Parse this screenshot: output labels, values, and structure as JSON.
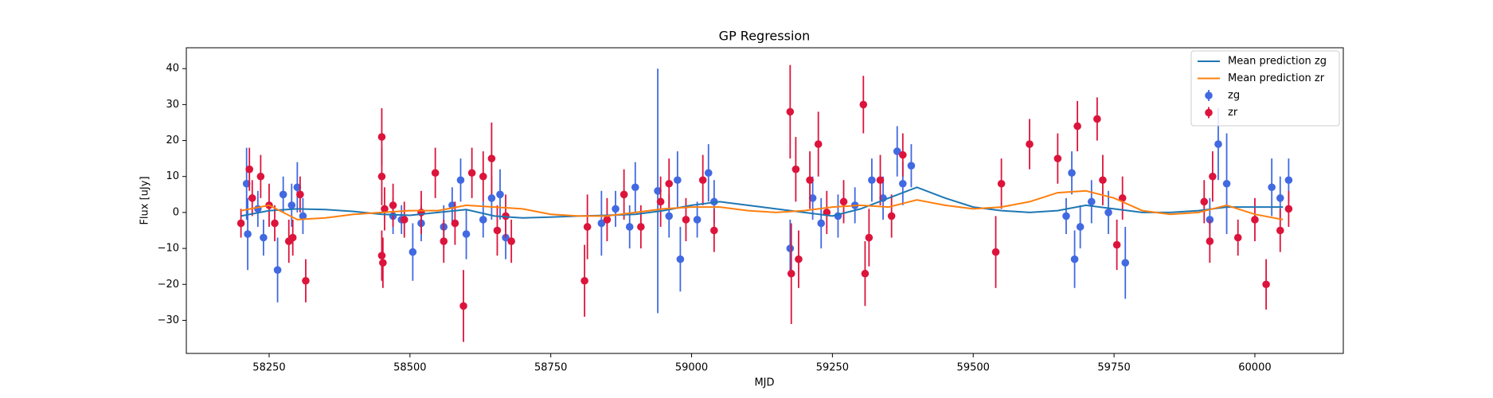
{
  "chart_data": {
    "type": "errorbar_line",
    "title": "GP Regression",
    "xlabel": "MJD",
    "ylabel": "Flux [uJy]",
    "xlim": [
      58103,
      60157
    ],
    "ylim": [
      -39.2,
      45.8
    ],
    "xticks": [
      58250,
      58500,
      58750,
      59000,
      59250,
      59500,
      59750,
      60000
    ],
    "yticks": [
      {
        "value": -30,
        "label": "−30"
      },
      {
        "value": -20,
        "label": "−20"
      },
      {
        "value": -10,
        "label": "−10"
      },
      0,
      10,
      20,
      30,
      40
    ],
    "legend": "upper right",
    "lines": [
      {
        "name": "Mean prediction zg",
        "color": "#1f77b4",
        "x": [
          58200,
          58250,
          58300,
          58350,
          58400,
          58450,
          58500,
          58550,
          58600,
          58650,
          58700,
          58750,
          58800,
          58850,
          58900,
          58950,
          59000,
          59050,
          59100,
          59150,
          59200,
          59250,
          59300,
          59350,
          59400,
          59450,
          59500,
          59550,
          59600,
          59650,
          59700,
          59750,
          59800,
          59850,
          59900,
          59950,
          60000,
          60050
        ],
        "values": [
          -1,
          0.5,
          1,
          0.8,
          0.3,
          -0.5,
          -0.8,
          0,
          0.8,
          -1,
          -1.5,
          -1.3,
          -1,
          -0.8,
          -0.5,
          0.5,
          2,
          3,
          2,
          1,
          0,
          -1,
          1,
          4,
          7,
          4,
          1.5,
          0.5,
          0,
          0.5,
          2,
          1,
          0,
          0,
          0.5,
          1.5,
          1.5,
          1.5
        ]
      },
      {
        "name": "Mean prediction zr",
        "color": "#ff7f0e",
        "x": [
          58200,
          58250,
          58300,
          58350,
          58400,
          58450,
          58500,
          58550,
          58600,
          58650,
          58700,
          58750,
          58800,
          58850,
          58900,
          58950,
          59000,
          59050,
          59100,
          59150,
          59200,
          59250,
          59300,
          59350,
          59400,
          59450,
          59500,
          59550,
          59600,
          59650,
          59700,
          59750,
          59800,
          59850,
          59900,
          59950,
          60000,
          60050
        ],
        "values": [
          0.5,
          2,
          -2,
          -1.5,
          -0.5,
          0,
          0.5,
          0.5,
          2,
          1.5,
          1,
          -0.5,
          -1,
          -1,
          0,
          1,
          1.5,
          1.5,
          0.5,
          0,
          0.5,
          1.5,
          2,
          1.5,
          3.5,
          2,
          1,
          1.5,
          3,
          5.5,
          6,
          4,
          0.5,
          -0.5,
          0,
          2,
          -0.5,
          -2
        ]
      }
    ],
    "series": [
      {
        "name": "zg",
        "color": "#4169e1",
        "x": [
          58210,
          58212,
          58230,
          58240,
          58265,
          58275,
          58290,
          58300,
          58310,
          58470,
          58485,
          58505,
          58520,
          58560,
          58575,
          58590,
          58600,
          58630,
          58645,
          58660,
          58670,
          58840,
          58865,
          58890,
          58900,
          58940,
          58960,
          58975,
          58980,
          59010,
          59030,
          59040,
          59175,
          59215,
          59230,
          59260,
          59290,
          59320,
          59340,
          59365,
          59375,
          59390,
          59665,
          59675,
          59680,
          59690,
          59710,
          59740,
          59770,
          59920,
          59935,
          59950,
          60030,
          60045,
          60060
        ],
        "values": [
          8,
          -6,
          1,
          -7,
          -16,
          5,
          2,
          7,
          -1,
          -1,
          -2,
          -11,
          -3,
          -4,
          2,
          9,
          -6,
          -2,
          4,
          5,
          -7,
          -3,
          1,
          -4,
          7,
          6,
          -1,
          9,
          -13,
          -2,
          11,
          3,
          -10,
          4,
          -3,
          -1,
          2,
          9,
          4,
          17,
          8,
          13,
          -1,
          11,
          -13,
          -4,
          3,
          0,
          -14,
          -2,
          19,
          8,
          7,
          4,
          9
        ],
        "errors": [
          10,
          10,
          5,
          5,
          9,
          5,
          6,
          7,
          5,
          5,
          4,
          8,
          5,
          6,
          5,
          6,
          7,
          5,
          6,
          7,
          6,
          9,
          5,
          6,
          7,
          34,
          6,
          8,
          9,
          5,
          8,
          6,
          8,
          6,
          7,
          6,
          5,
          6,
          6,
          7,
          6,
          6,
          5,
          6,
          8,
          6,
          6,
          6,
          10,
          6,
          10,
          14,
          8,
          6,
          6
        ]
      },
      {
        "name": "zr",
        "color": "#dc143c",
        "x": [
          58200,
          58215,
          58220,
          58235,
          58250,
          58260,
          58285,
          58292,
          58305,
          58315,
          58450,
          58450,
          58450,
          58452,
          58455,
          58470,
          58490,
          58520,
          58545,
          58560,
          58580,
          58595,
          58610,
          58630,
          58645,
          58655,
          58670,
          58680,
          58810,
          58815,
          58850,
          58880,
          58910,
          58945,
          58960,
          58990,
          59020,
          59040,
          59175,
          59177,
          59185,
          59190,
          59210,
          59225,
          59240,
          59270,
          59305,
          59308,
          59315,
          59335,
          59355,
          59375,
          59540,
          59550,
          59600,
          59650,
          59685,
          59720,
          59730,
          59755,
          59765,
          59910,
          59920,
          59925,
          59970,
          60000,
          60020,
          60045,
          60060
        ],
        "values": [
          -3,
          12,
          4,
          10,
          2,
          -3,
          -8,
          -7,
          5,
          -19,
          21,
          10,
          -12,
          -14,
          1,
          2,
          -2,
          0,
          11,
          -8,
          -3,
          -26,
          11,
          10,
          15,
          -5,
          -1,
          -8,
          -19,
          -4,
          -2,
          5,
          -4,
          3,
          8,
          -2,
          9,
          -5,
          28,
          -17,
          12,
          -13,
          9,
          19,
          0,
          3,
          30,
          -17,
          -7,
          9,
          -1,
          16,
          -11,
          8,
          19,
          15,
          24,
          26,
          9,
          -9,
          4,
          3,
          -8,
          10,
          -7,
          -2,
          -20,
          -5,
          1
        ],
        "errors": [
          4,
          6,
          5,
          6,
          6,
          5,
          6,
          5,
          5,
          6,
          8,
          8,
          7,
          7,
          6,
          6,
          5,
          6,
          7,
          6,
          6,
          10,
          7,
          7,
          10,
          7,
          6,
          6,
          10,
          9,
          6,
          7,
          6,
          7,
          7,
          6,
          7,
          6,
          13,
          14,
          9,
          8,
          8,
          9,
          6,
          6,
          8,
          9,
          8,
          7,
          6,
          6,
          10,
          7,
          7,
          7,
          7,
          6,
          7,
          7,
          6,
          6,
          6,
          7,
          5,
          6,
          7,
          6,
          5
        ]
      }
    ]
  }
}
